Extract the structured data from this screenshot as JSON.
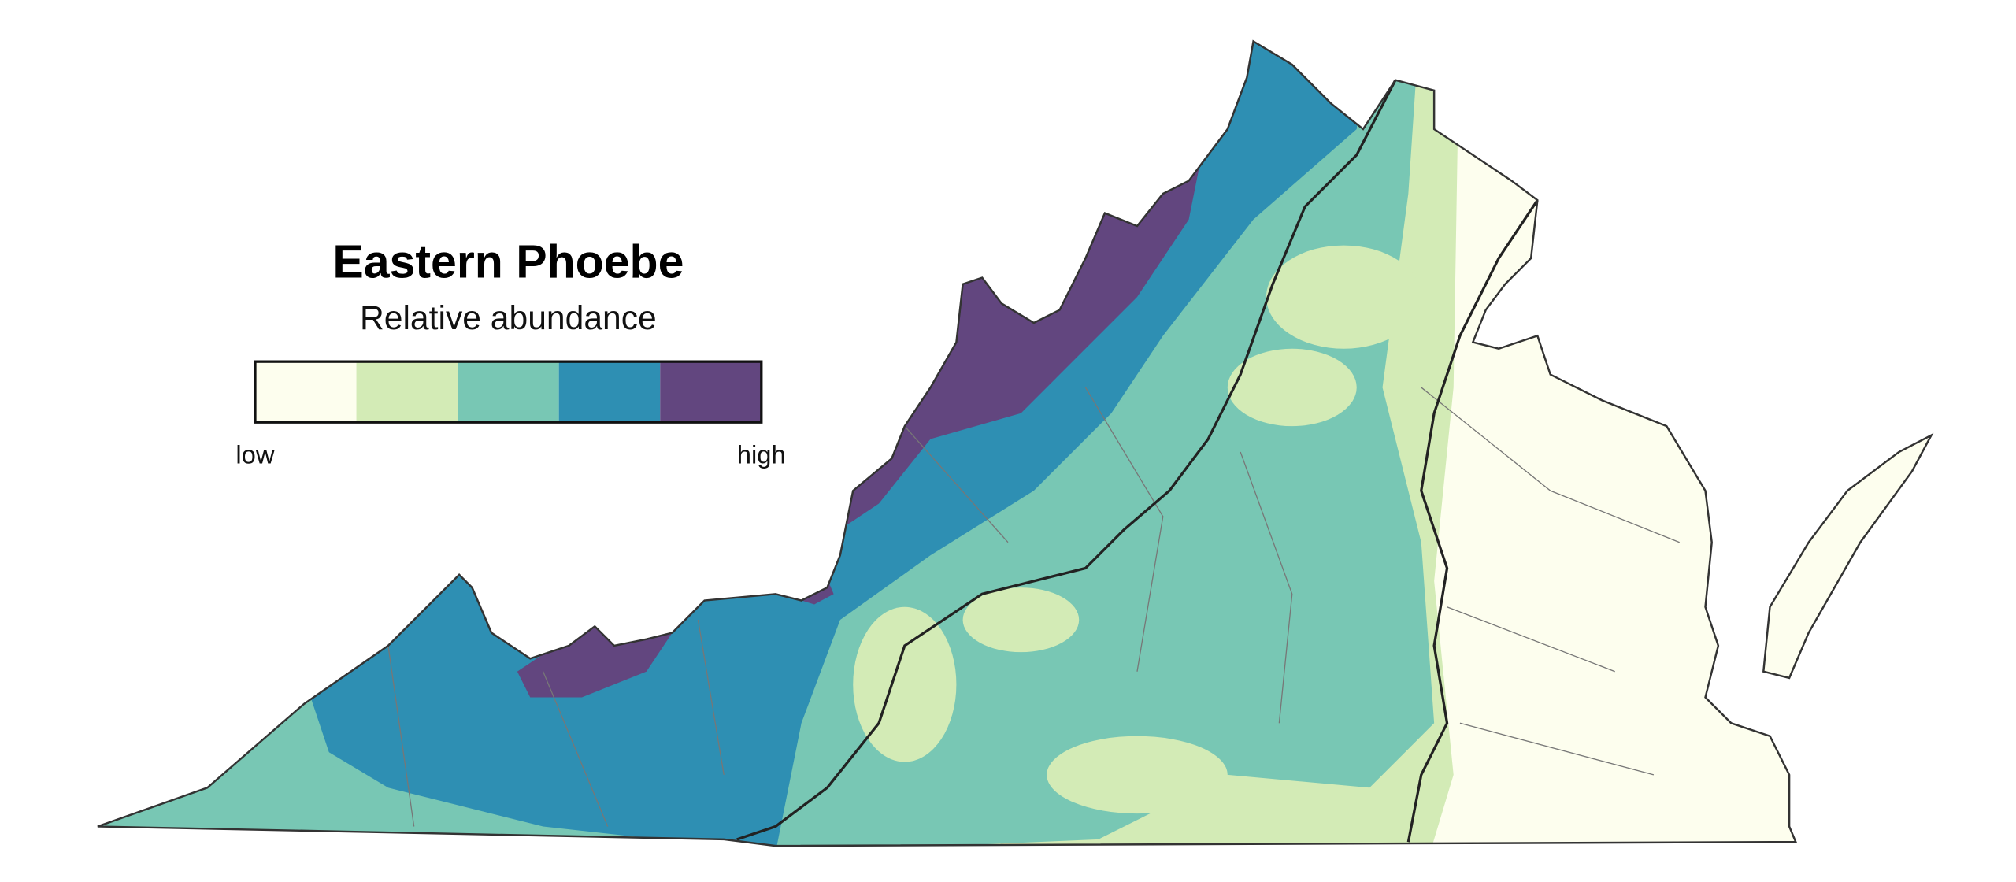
{
  "title": "Eastern Phoebe",
  "subtitle": "Relative abundance",
  "legend": {
    "low_label": "low",
    "high_label": "high",
    "colors": [
      "#fdfeee",
      "#d3ebb6",
      "#78c7b4",
      "#2e8fb3",
      "#62467f"
    ]
  }
}
